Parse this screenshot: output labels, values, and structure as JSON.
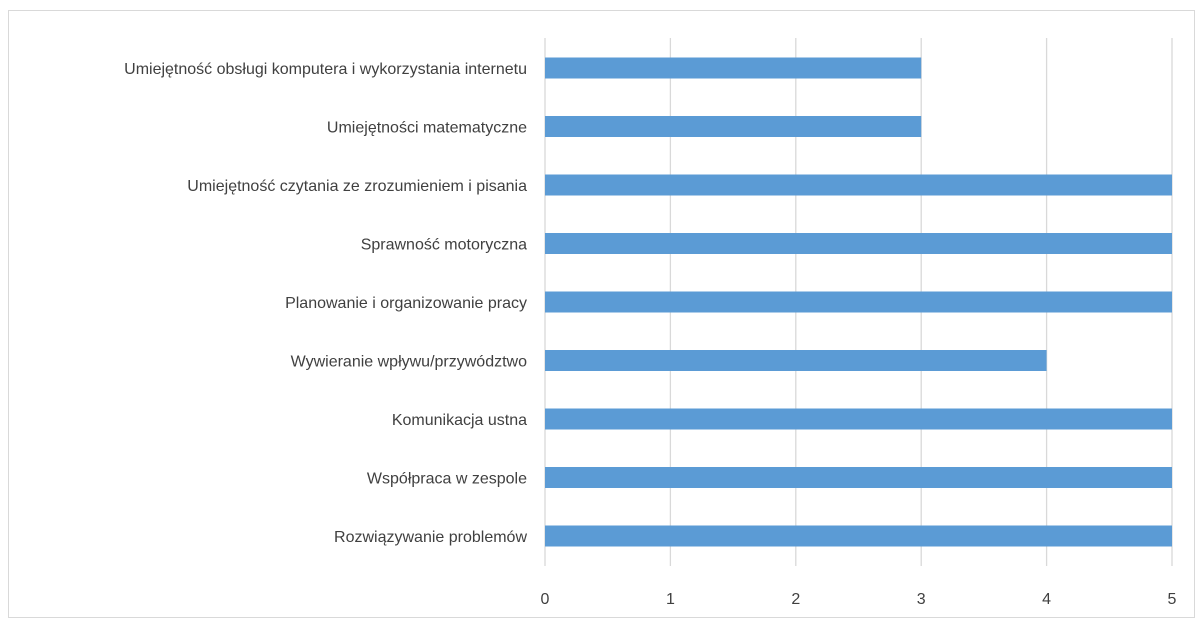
{
  "chart_data": {
    "type": "bar",
    "orientation": "horizontal",
    "categories": [
      "Umiejętność obsługi komputera i wykorzystania internetu",
      "Umiejętności matematyczne",
      "Umiejętność czytania ze zrozumieniem i pisania",
      "Sprawność motoryczna",
      "Planowanie i organizowanie pracy",
      "Wywieranie wpływu/przywództwo",
      "Komunikacja ustna",
      "Współpraca w zespole",
      "Rozwiązywanie problemów"
    ],
    "values": [
      3,
      3,
      5,
      5,
      5,
      4,
      5,
      5,
      5
    ],
    "xlim": [
      0,
      5
    ],
    "xticks": [
      "0",
      "1",
      "2",
      "3",
      "4",
      "5"
    ],
    "title": "",
    "xlabel": "",
    "ylabel": "",
    "grid": true,
    "bar_color": "#5b9bd5",
    "grid_color": "#d9d9d9",
    "text_color": "#404040"
  }
}
